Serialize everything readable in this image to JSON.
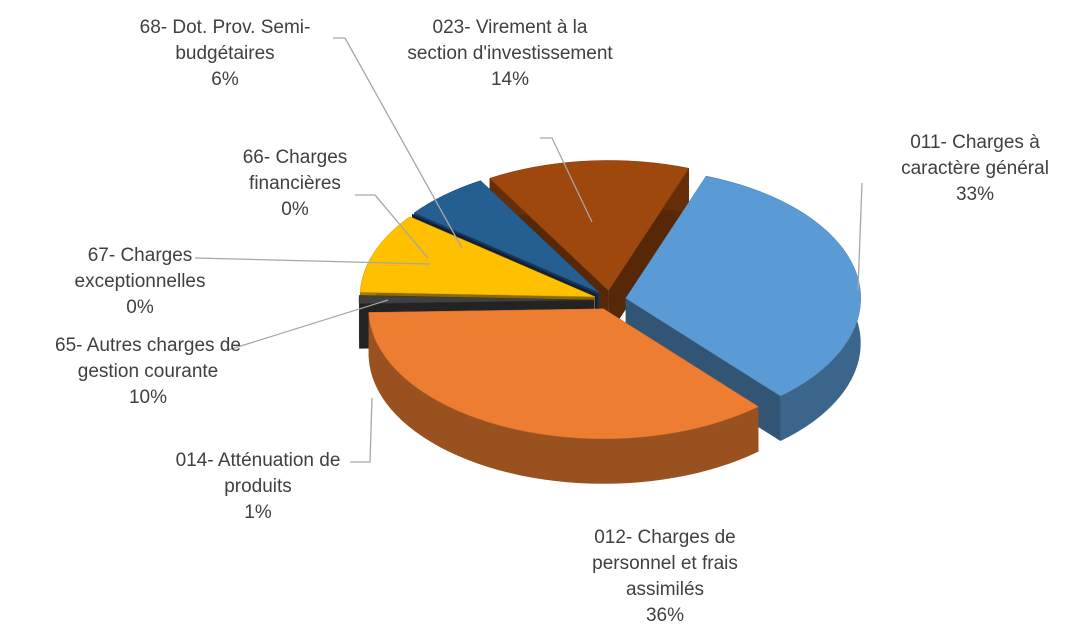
{
  "chart_data": {
    "type": "pie3d",
    "categories": [
      "011- Charges à caractère général",
      "012- Charges de personnel et frais assimilés",
      "014- Atténuation de produits",
      "65- Autres charges de gestion courante",
      "67- Charges exceptionnelles",
      "66- Charges financières",
      "68- Dot. Prov. Semi-budgétaires",
      "023- Virement à la section d'investissement"
    ],
    "values": [
      33,
      36,
      1,
      10,
      0,
      0,
      6,
      14
    ],
    "value_labels": [
      "33%",
      "36%",
      "1%",
      "10%",
      "0%",
      "0%",
      "6%",
      "14%"
    ],
    "colors": [
      "#5b9bd5",
      "#ed7d31",
      "#404040",
      "#ffc000",
      "#7f7f7f",
      "#1f3864",
      "#255e91",
      "#9e480e"
    ]
  }
}
